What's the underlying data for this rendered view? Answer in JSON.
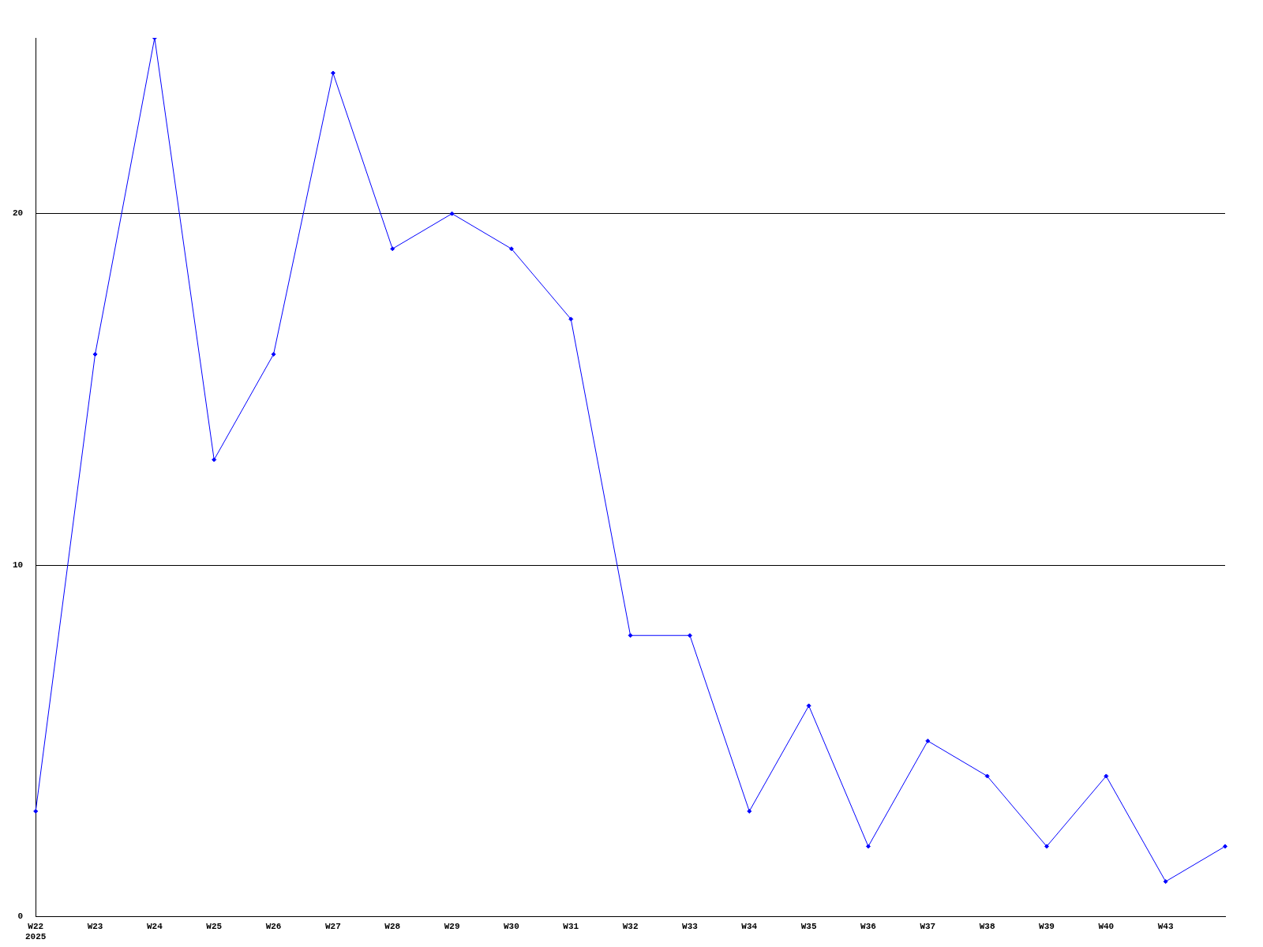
{
  "chart_data": {
    "type": "line",
    "categories": [
      "W22\n2025",
      "W23",
      "W24",
      "W25",
      "W26",
      "W27",
      "W28",
      "W29",
      "W30",
      "W31",
      "W32",
      "W33",
      "W34",
      "W35",
      "W36",
      "W37",
      "W38",
      "W39",
      "W40",
      "W43",
      null
    ],
    "series": [
      {
        "color": "#0000ff",
        "values": [
          3,
          16,
          25,
          13,
          16,
          24,
          19,
          20,
          19,
          17,
          8,
          8,
          3,
          6,
          2,
          5,
          4,
          2,
          4,
          1,
          2
        ]
      }
    ],
    "ylim": [
      0,
      25
    ],
    "yticks": [
      0,
      10,
      20
    ],
    "grid": "y",
    "legend": false,
    "marker": "diamond",
    "line_style": "solid"
  }
}
